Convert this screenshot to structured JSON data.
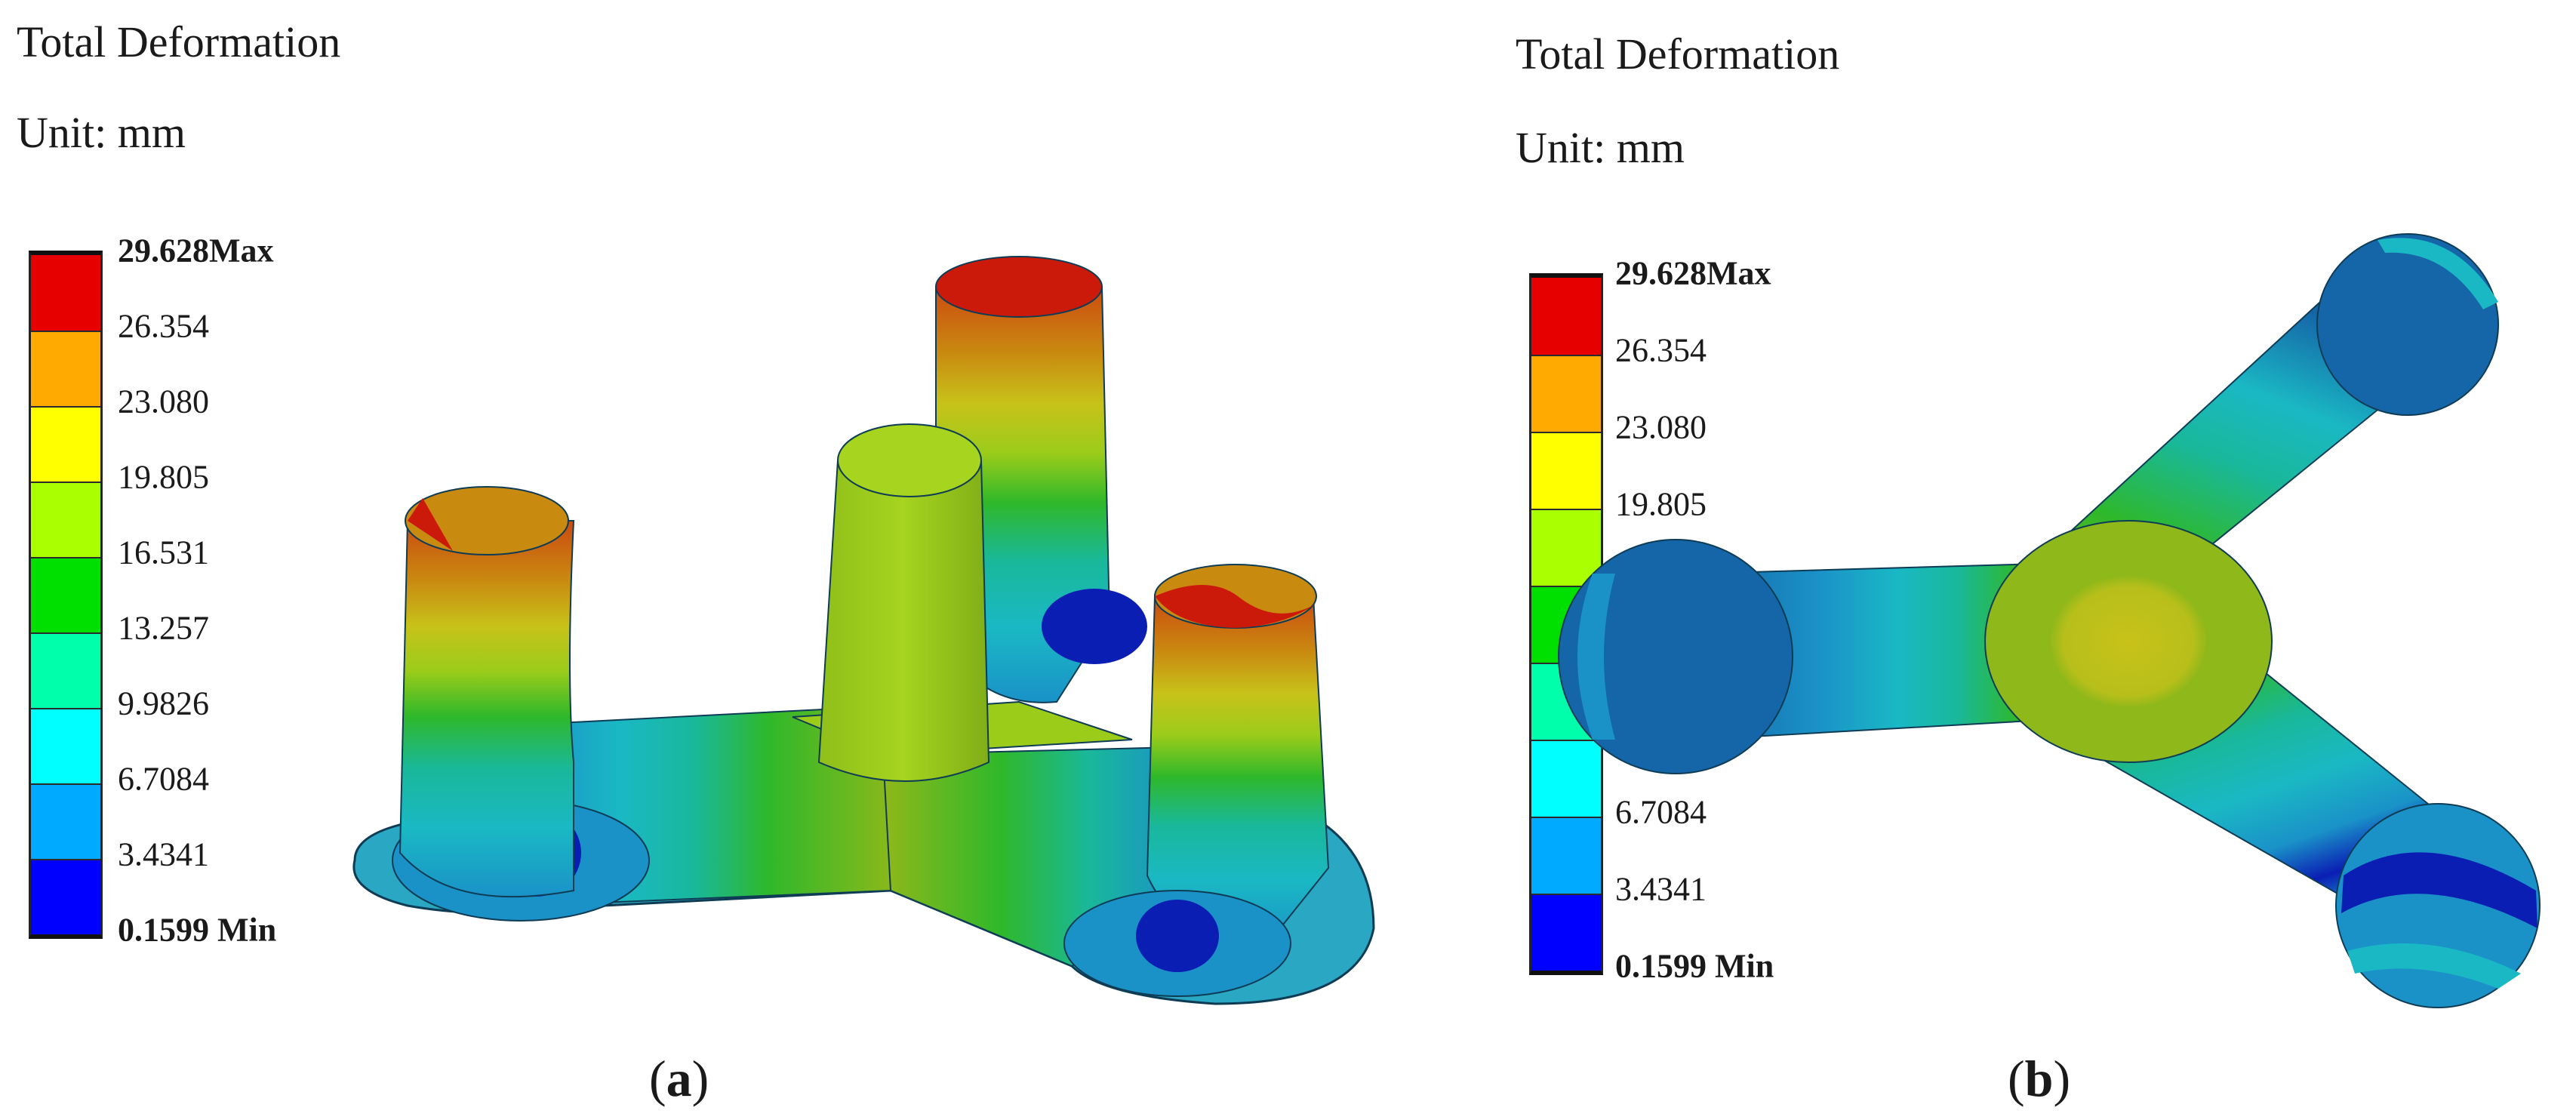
{
  "panels": [
    {
      "title": "Total Deformation",
      "unit": "Unit: mm",
      "caption_open": "(",
      "caption_letter": "a",
      "caption_close": ")"
    },
    {
      "title": "Total Deformation",
      "unit": "Unit: mm",
      "caption_open": "(",
      "caption_letter": "b",
      "caption_close": ")"
    }
  ],
  "legend": {
    "max_label": "29.628Max",
    "min_label": "0.1599 Min",
    "ticks": [
      "26.354",
      "23.080",
      "19.805",
      "16.531",
      "13.257",
      "9.9826",
      "6.7084",
      "3.4341"
    ],
    "colors": [
      "#e60000",
      "#ffaa00",
      "#ffff00",
      "#aaff00",
      "#00e000",
      "#00ffaa",
      "#00ffff",
      "#00aaff",
      "#0000ff"
    ]
  },
  "model_colors": {
    "red": "#cc1a0a",
    "orange": "#c98a10",
    "yellow": "#c8c21a",
    "yellow_green": "#9bcc1a",
    "green": "#2fb82a",
    "teal": "#19b89a",
    "cyan": "#1ab8c4",
    "light_blue": "#1a92c8",
    "blue": "#1566a8",
    "dark_blue": "#0a1eb4"
  }
}
